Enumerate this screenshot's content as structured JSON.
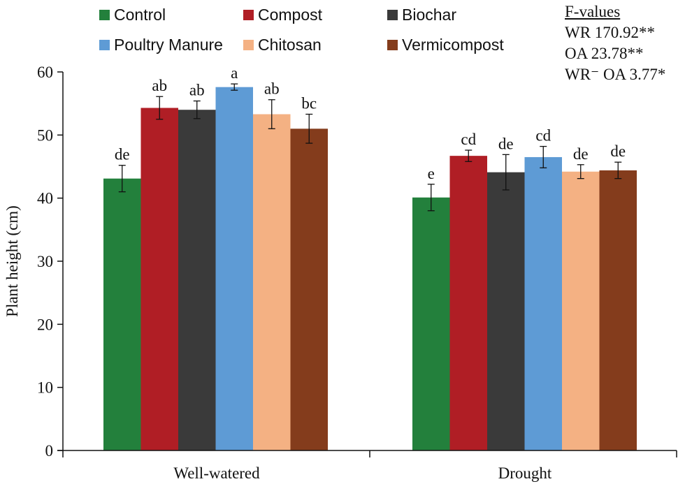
{
  "chart_data": {
    "type": "bar",
    "title": "",
    "xlabel": "",
    "ylabel": "Plant height (cm)",
    "ylim": [
      0,
      60
    ],
    "yticks": [
      0,
      10,
      20,
      30,
      40,
      50,
      60
    ],
    "grid": false,
    "legend_position": "top",
    "categories": [
      "Well-watered",
      "Drought"
    ],
    "series": [
      {
        "name": "Control",
        "color": "#23803c",
        "values": [
          43.1,
          40.1
        ],
        "errors": [
          2.1,
          2.1
        ],
        "letters": [
          "de",
          "e"
        ]
      },
      {
        "name": "Compost",
        "color": "#b01e25",
        "values": [
          54.3,
          46.7
        ],
        "errors": [
          1.8,
          0.9
        ],
        "letters": [
          "ab",
          "cd"
        ]
      },
      {
        "name": "Biochar",
        "color": "#3a3a3a",
        "values": [
          54.0,
          44.1
        ],
        "errors": [
          1.4,
          2.8
        ],
        "letters": [
          "ab",
          "de"
        ]
      },
      {
        "name": "Poultry Manure",
        "color": "#5e9bd5",
        "values": [
          57.6,
          46.5
        ],
        "errors": [
          0.5,
          1.7
        ],
        "letters": [
          "a",
          "cd"
        ]
      },
      {
        "name": "Chitosan",
        "color": "#f4b183",
        "values": [
          53.3,
          44.2
        ],
        "errors": [
          2.3,
          1.1
        ],
        "letters": [
          "ab",
          "de"
        ]
      },
      {
        "name": "Vermicompost",
        "color": "#843c1c",
        "values": [
          51.0,
          44.4
        ],
        "errors": [
          2.3,
          1.3
        ],
        "letters": [
          "bc",
          "de"
        ]
      }
    ],
    "annotation": {
      "title": "F-values",
      "lines": [
        "WR 170.92**",
        "OA 23.78**",
        "WR⁻ OA 3.77*"
      ]
    }
  }
}
